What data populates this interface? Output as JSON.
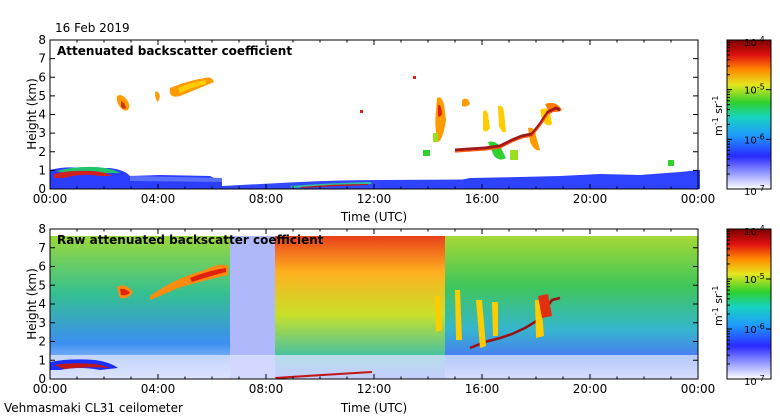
{
  "date": "16 Feb 2019",
  "footer": "Vehmasmaki CL31 ceilometer",
  "chart_data": [
    {
      "type": "heatmap",
      "title": "Attenuated backscatter coefficient",
      "xlabel": "Time (UTC)",
      "ylabel": "Height (km)",
      "xlim": [
        "00:00",
        "24:00"
      ],
      "ylim": [
        0,
        8
      ],
      "x_ticks": [
        "00:00",
        "04:00",
        "08:00",
        "12:00",
        "16:00",
        "20:00",
        "00:00"
      ],
      "y_ticks": [
        "0",
        "1",
        "2",
        "3",
        "4",
        "5",
        "6",
        "7",
        "8"
      ],
      "colorbar": {
        "scale": "log",
        "min": "1e-7",
        "max": "1e-4",
        "tick_labels": [
          "10-7",
          "10-6",
          "10-5",
          "10-4"
        ],
        "unit": "m-1 sr-1"
      },
      "features": [
        {
          "name": "near-surface layer",
          "start": "00:00",
          "end": "06:30",
          "top_km": 1.0
        },
        {
          "name": "cloud layer",
          "start": "02:30",
          "end": "06:00",
          "base_km": 4.2,
          "top_km": 6.0
        },
        {
          "name": "cloud base",
          "start": "15:00",
          "end": "19:00",
          "base_km": 2.0,
          "top_km": 4.3
        }
      ]
    },
    {
      "type": "heatmap",
      "title": "Raw attenuated backscatter coefficient",
      "xlabel": "Time (UTC)",
      "ylabel": "Height (km)",
      "xlim": [
        "00:00",
        "24:00"
      ],
      "ylim": [
        0,
        8
      ],
      "x_ticks": [
        "00:00",
        "04:00",
        "08:00",
        "12:00",
        "16:00",
        "20:00",
        "00:00"
      ],
      "y_ticks": [
        "0",
        "1",
        "2",
        "3",
        "4",
        "5",
        "6",
        "7",
        "8"
      ],
      "colorbar": {
        "scale": "log",
        "min": "1e-7",
        "max": "1e-4",
        "tick_labels": [
          "10-7",
          "10-6",
          "10-5",
          "10-4"
        ],
        "unit": "m-1 sr-1"
      }
    }
  ],
  "colors": {
    "background": "#ffffff",
    "colormap": [
      "#ffffff",
      "#3a3aff",
      "#2aa0ff",
      "#19d7c8",
      "#2ed12e",
      "#c8e61e",
      "#ffd21e",
      "#ff7a00",
      "#e01010",
      "#800000"
    ]
  }
}
